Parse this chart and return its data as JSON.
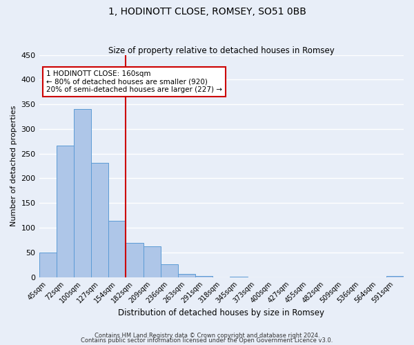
{
  "title": "1, HODINOTT CLOSE, ROMSEY, SO51 0BB",
  "subtitle": "Size of property relative to detached houses in Romsey",
  "xlabel": "Distribution of detached houses by size in Romsey",
  "ylabel": "Number of detached properties",
  "bar_labels": [
    "45sqm",
    "72sqm",
    "100sqm",
    "127sqm",
    "154sqm",
    "182sqm",
    "209sqm",
    "236sqm",
    "263sqm",
    "291sqm",
    "318sqm",
    "345sqm",
    "373sqm",
    "400sqm",
    "427sqm",
    "455sqm",
    "482sqm",
    "509sqm",
    "536sqm",
    "564sqm",
    "591sqm"
  ],
  "bar_heights": [
    50,
    267,
    340,
    232,
    114,
    69,
    63,
    26,
    7,
    2,
    0,
    1,
    0,
    0,
    0,
    0,
    0,
    0,
    0,
    0,
    2
  ],
  "bar_color": "#aec6e8",
  "bar_edge_color": "#5b9bd5",
  "vline_x_idx": 4.5,
  "vline_color": "#cc0000",
  "ylim": [
    0,
    450
  ],
  "yticks": [
    0,
    50,
    100,
    150,
    200,
    250,
    300,
    350,
    400,
    450
  ],
  "annotation_title": "1 HODINOTT CLOSE: 160sqm",
  "annotation_line1": "← 80% of detached houses are smaller (920)",
  "annotation_line2": "20% of semi-detached houses are larger (227) →",
  "annotation_box_color": "#ffffff",
  "annotation_box_edge": "#cc0000",
  "footer1": "Contains HM Land Registry data © Crown copyright and database right 2024.",
  "footer2": "Contains public sector information licensed under the Open Government Licence v3.0.",
  "background_color": "#e8eef8",
  "grid_color": "#ffffff"
}
